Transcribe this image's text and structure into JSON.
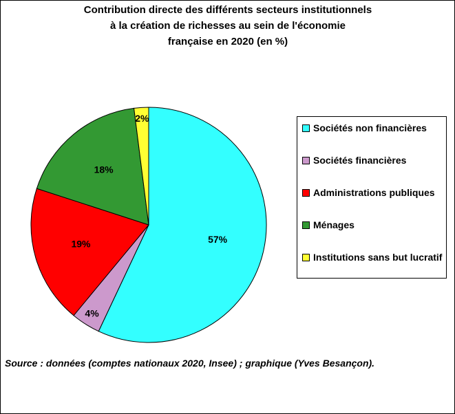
{
  "chart_data": {
    "type": "pie",
    "title": [
      "Contribution directe des différents secteurs institutionnels",
      "à la création de richesses au sein de l'économie",
      "française en 2020 (en %)"
    ],
    "series": [
      {
        "name": "Sociétés non financières",
        "color": "#33ffff",
        "values": [
          57
        ],
        "value_labels": [
          "57%"
        ]
      },
      {
        "name": "Sociétés financières",
        "color": "#cc99cc",
        "values": [
          4
        ],
        "value_labels": [
          "4%"
        ]
      },
      {
        "name": "Administrations publiques",
        "color": "#ff0000",
        "values": [
          19
        ],
        "value_labels": [
          "19%"
        ]
      },
      {
        "name": "Ménages",
        "color": "#339933",
        "values": [
          18
        ],
        "value_labels": [
          "18%"
        ]
      },
      {
        "name": "Institutions sans but lucratif",
        "color": "#ffff33",
        "values": [
          2
        ],
        "value_labels": [
          "2%"
        ]
      }
    ],
    "legend": "right",
    "source": "Source : données (comptes nationaux 2020, Insee) ; graphique (Yves Besançon)."
  }
}
